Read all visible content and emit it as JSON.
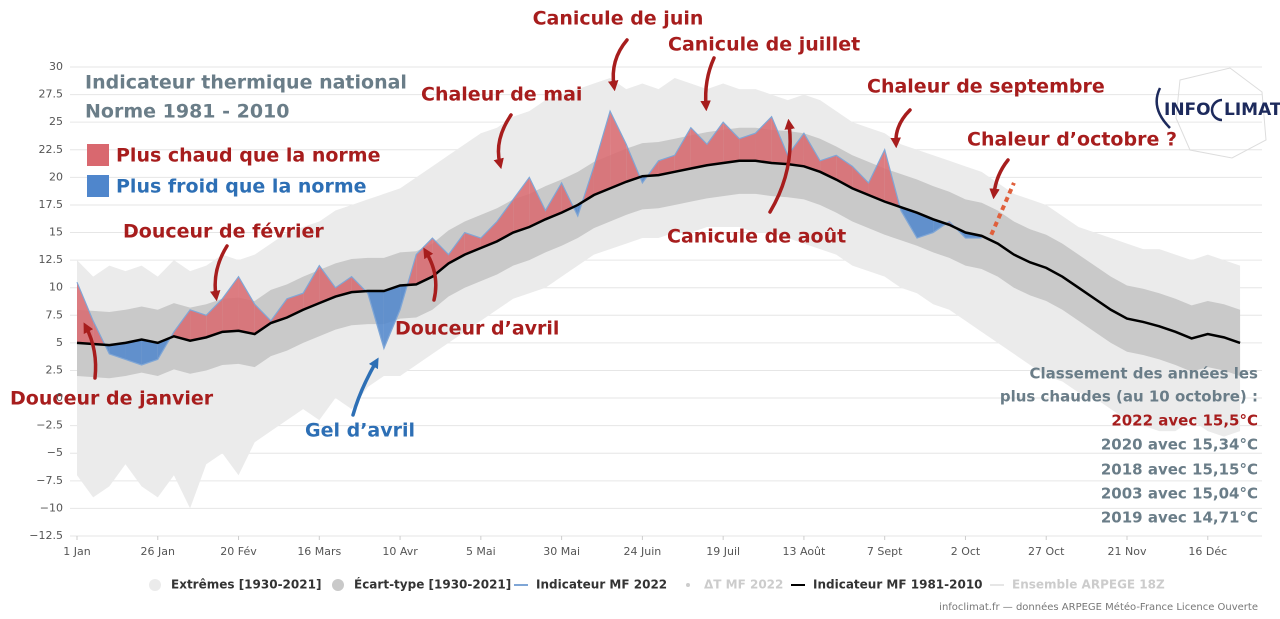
{
  "chart_data": {
    "type": "band-line",
    "title": [
      "Indicateur thermique national",
      "Norme 1981 - 2010"
    ],
    "above_label": "Plus chaud que la norme",
    "above_color": "#d9686f",
    "below_label": "Plus froid que la norme",
    "below_color": "#4f86cc",
    "x": [
      1,
      6,
      11,
      16,
      21,
      26,
      31,
      36,
      41,
      46,
      51,
      56,
      61,
      66,
      71,
      76,
      81,
      86,
      91,
      96,
      101,
      106,
      111,
      116,
      121,
      126,
      131,
      136,
      141,
      146,
      151,
      156,
      161,
      166,
      171,
      176,
      181,
      186,
      191,
      196,
      201,
      206,
      211,
      216,
      221,
      226,
      231,
      236,
      241,
      246,
      251,
      256,
      261,
      266,
      271,
      276,
      281,
      286,
      291,
      296,
      301,
      306,
      311,
      316,
      321,
      326,
      331,
      336,
      341,
      346,
      351,
      356,
      361
    ],
    "xlim": [
      1,
      365
    ],
    "xticks": [
      {
        "value": 1,
        "label": "1 Jan"
      },
      {
        "value": 26,
        "label": "26 Jan"
      },
      {
        "value": 51,
        "label": "20 Fév"
      },
      {
        "value": 76,
        "label": "16 Mars"
      },
      {
        "value": 101,
        "label": "10 Avr"
      },
      {
        "value": 126,
        "label": "5 Mai"
      },
      {
        "value": 151,
        "label": "30 Mai"
      },
      {
        "value": 176,
        "label": "24 Juin"
      },
      {
        "value": 201,
        "label": "19 Juil"
      },
      {
        "value": 226,
        "label": "13 Août"
      },
      {
        "value": 251,
        "label": "7 Sept"
      },
      {
        "value": 276,
        "label": "2 Oct"
      },
      {
        "value": 301,
        "label": "27 Oct"
      },
      {
        "value": 326,
        "label": "21 Nov"
      },
      {
        "value": 351,
        "label": "16 Déc"
      }
    ],
    "ylim": [
      -12.5,
      30
    ],
    "yticks": [
      30,
      27.5,
      25,
      22.5,
      20,
      17.5,
      15,
      12.5,
      10,
      7.5,
      5,
      2.5,
      0,
      {
        "value": -2.5,
        "label": "−2.5"
      },
      {
        "value": -5,
        "label": "−5"
      },
      {
        "value": -7.5,
        "label": "−7.5"
      },
      {
        "value": -10,
        "label": "−10"
      },
      {
        "value": -12.5,
        "label": "−12.5"
      }
    ],
    "grid": true,
    "series": [
      {
        "name": "Extrêmes [1930-2021]",
        "color": "#ebebeb",
        "low": [
          -7,
          -9,
          -8,
          -6,
          -8,
          -9,
          -7,
          -10,
          -6,
          -5,
          -7,
          -4,
          -3,
          -2,
          -1,
          -2,
          0,
          -1,
          1,
          2,
          2,
          3,
          4,
          5,
          6,
          7,
          8,
          9,
          9.5,
          10,
          11,
          12,
          13,
          13.5,
          14,
          14.5,
          14.5,
          15,
          15,
          15.5,
          15.5,
          15.5,
          15,
          15,
          14.5,
          14,
          13.5,
          13,
          12,
          11.5,
          11,
          10,
          9.5,
          8.5,
          8,
          7,
          6,
          5,
          4,
          3,
          2,
          1.5,
          0.5,
          0,
          -1,
          -2,
          -2.5,
          -3,
          -3,
          -2,
          -3,
          -3.5,
          -3
        ],
        "high": [
          12.5,
          11,
          12,
          11.5,
          12,
          11,
          12.5,
          11.5,
          12,
          13,
          12.5,
          13,
          14,
          15,
          15.5,
          16,
          17,
          17.5,
          18,
          18.5,
          19,
          20,
          21,
          22,
          23,
          24,
          24.5,
          25.5,
          26,
          27,
          27.5,
          28,
          28.5,
          29,
          28,
          28.5,
          28,
          29,
          28.5,
          28,
          28.5,
          28,
          28,
          27.5,
          27,
          27.5,
          27,
          26,
          25,
          24.5,
          24,
          23,
          22.5,
          22,
          21.5,
          21,
          20.5,
          19.5,
          18.5,
          18,
          17.5,
          16.5,
          15.5,
          15,
          14.5,
          14,
          13.5,
          13.5,
          13,
          12.5,
          13,
          12.5,
          12
        ]
      },
      {
        "name": "Écart-type [1930-2021]",
        "color": "#c9c9c9",
        "low": [
          2.0,
          1.9,
          1.8,
          2.0,
          2.3,
          2.0,
          2.6,
          2.2,
          2.5,
          3.0,
          3.1,
          2.8,
          3.8,
          4.3,
          5.0,
          5.6,
          6.2,
          6.6,
          6.7,
          6.7,
          7.2,
          7.3,
          8.0,
          9.2,
          10.0,
          10.6,
          11.2,
          12.0,
          12.5,
          13.2,
          13.8,
          14.5,
          15.4,
          16.0,
          16.6,
          17.1,
          17.2,
          17.5,
          17.8,
          18.1,
          18.3,
          18.5,
          18.5,
          18.3,
          18.2,
          18.0,
          17.5,
          16.8,
          16.0,
          15.4,
          14.8,
          14.3,
          13.8,
          13.2,
          12.7,
          12.0,
          11.7,
          11.0,
          10.0,
          9.3,
          8.8,
          8.0,
          7.0,
          6.0,
          5.0,
          4.2,
          3.9,
          3.5,
          3.0,
          2.4,
          2.8,
          2.5,
          2.0
        ],
        "high": [
          8.0,
          7.9,
          7.8,
          8.0,
          8.3,
          8.0,
          8.6,
          8.2,
          8.5,
          9.0,
          9.1,
          8.8,
          9.8,
          10.3,
          11.0,
          11.6,
          12.2,
          12.6,
          12.7,
          12.7,
          13.2,
          13.3,
          14.0,
          15.2,
          16.0,
          16.6,
          17.2,
          18.0,
          18.5,
          19.2,
          19.8,
          20.5,
          21.4,
          22.0,
          22.6,
          23.1,
          23.2,
          23.5,
          23.8,
          24.1,
          24.3,
          24.5,
          24.5,
          24.3,
          24.2,
          24.0,
          23.5,
          22.8,
          22.0,
          21.4,
          20.8,
          20.3,
          19.8,
          19.2,
          18.7,
          18.0,
          17.7,
          17.0,
          16.0,
          15.3,
          14.8,
          14.0,
          13.0,
          12.0,
          11.0,
          10.2,
          9.9,
          9.5,
          9.0,
          8.4,
          8.8,
          8.5,
          8.0
        ]
      },
      {
        "name": "Indicateur MF 2022",
        "color": "#7fa6d6",
        "values": [
          10.5,
          7,
          4,
          3.5,
          3,
          3.5,
          6,
          8,
          7.5,
          9,
          11,
          8.5,
          7,
          9,
          9.5,
          12,
          10,
          11,
          9.5,
          4.5,
          8,
          13,
          14.5,
          13,
          15,
          14.5,
          16,
          18,
          20,
          17,
          19.5,
          16.5,
          21,
          26,
          23,
          19.5,
          21.5,
          22,
          24.5,
          23,
          25,
          23.5,
          24,
          25.5,
          22,
          24,
          21.5,
          22,
          21,
          19.5,
          22.5,
          17,
          14.5,
          15,
          16,
          14.5,
          14.5,
          null,
          null,
          null,
          null,
          null,
          null,
          null,
          null,
          null,
          null,
          null,
          null,
          null,
          null,
          null,
          null
        ]
      },
      {
        "name": "ΔT MF 2022",
        "color": "#cccccc",
        "visible": false
      },
      {
        "name": "Indicateur MF 1981-2010",
        "color": "#000000",
        "values": [
          5.0,
          4.9,
          4.8,
          5.0,
          5.3,
          5.0,
          5.6,
          5.2,
          5.5,
          6.0,
          6.1,
          5.8,
          6.8,
          7.3,
          8.0,
          8.6,
          9.2,
          9.6,
          9.7,
          9.7,
          10.2,
          10.3,
          11.0,
          12.2,
          13.0,
          13.6,
          14.2,
          15.0,
          15.5,
          16.2,
          16.8,
          17.5,
          18.4,
          19.0,
          19.6,
          20.1,
          20.2,
          20.5,
          20.8,
          21.1,
          21.3,
          21.5,
          21.5,
          21.3,
          21.2,
          21.0,
          20.5,
          19.8,
          19.0,
          18.4,
          17.8,
          17.3,
          16.8,
          16.2,
          15.7,
          15.0,
          14.7,
          14.0,
          13.0,
          12.3,
          11.8,
          11.0,
          10.0,
          9.0,
          8.0,
          7.2,
          6.9,
          6.5,
          6.0,
          5.4,
          5.8,
          5.5,
          5.0
        ]
      },
      {
        "name": "Ensemble ARPEGE 18Z",
        "color": "#e6e6e6",
        "visible": false
      }
    ],
    "forecast": {
      "x": [
        284,
        291
      ],
      "values": [
        14.8,
        19.5
      ],
      "color": "#e0603c"
    },
    "annotations": [
      "Canicule de juin",
      "Canicule de juillet",
      "Chaleur de mai",
      "Chaleur de septembre",
      "Chaleur d’octobre ?",
      "Douceur de février",
      "Canicule de août",
      "Douceur d’avril",
      "Douceur de janvier",
      "Gel d’avril"
    ],
    "ranking_title": [
      "Classement des années les",
      "plus chaudes (au 10 octobre) :"
    ],
    "ranking": [
      "2022 avec 15,5°C",
      "2020 avec 15,34°C",
      "2018 avec 15,15°C",
      "2003 avec 15,04°C",
      "2019 avec 14,71°C"
    ],
    "logo": [
      "INFO",
      "LIMAT"
    ],
    "credits": "infoclimat.fr — données ARPEGE Météo-France Licence Ouverte"
  }
}
